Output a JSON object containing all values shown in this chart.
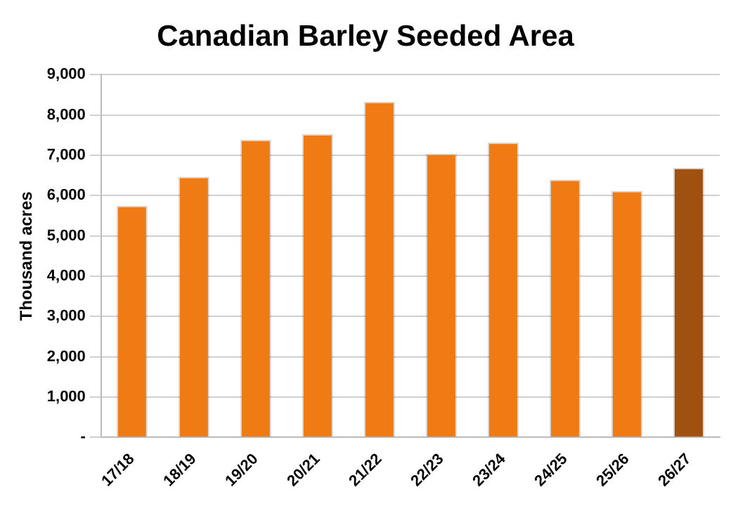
{
  "chart_data": {
    "type": "bar",
    "title": "Canadian Barley Seeded Area",
    "ylabel": "Thousand acres",
    "categories": [
      "17/18",
      "18/19",
      "19/20",
      "20/21",
      "21/22",
      "22/23",
      "23/24",
      "24/25",
      "25/26",
      "26/27"
    ],
    "values": [
      5750,
      6470,
      7390,
      7530,
      8330,
      7040,
      7320,
      6400,
      6120,
      6690
    ],
    "colors": [
      "#f07a14",
      "#f07a14",
      "#f07a14",
      "#f07a14",
      "#f07a14",
      "#f07a14",
      "#f07a14",
      "#f07a14",
      "#f07a14",
      "#a0500f"
    ],
    "ylim": [
      0,
      9000
    ],
    "yticks": [
      {
        "value": 0,
        "label": "-"
      },
      {
        "value": 1000,
        "label": "1,000"
      },
      {
        "value": 2000,
        "label": "2,000"
      },
      {
        "value": 3000,
        "label": "3,000"
      },
      {
        "value": 4000,
        "label": "4,000"
      },
      {
        "value": 5000,
        "label": "5,000"
      },
      {
        "value": 6000,
        "label": "6,000"
      },
      {
        "value": 7000,
        "label": "7,000"
      },
      {
        "value": 8000,
        "label": "8,000"
      },
      {
        "value": 9000,
        "label": "9,000"
      }
    ],
    "grid": "y"
  }
}
